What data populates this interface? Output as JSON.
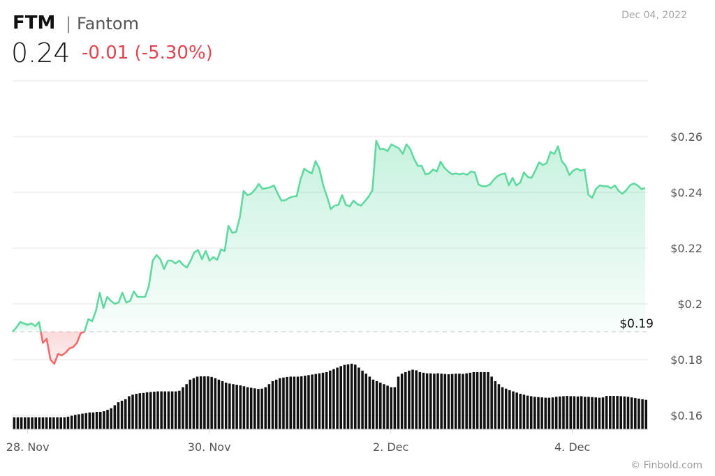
{
  "header": {
    "symbol": "FTM",
    "separator": "|",
    "name": "Fantom",
    "price": "0.24",
    "change": "-0.01 (-5.30%)",
    "date": "Dec 04, 2022",
    "credit": "© Finbold.com"
  },
  "colors": {
    "up_line": "#5fd9a0",
    "down_line": "#f26a6a",
    "change_text": "#e0454f",
    "volume": "#111111",
    "grid": "#e4e4e4"
  },
  "chart_data": {
    "type": "area",
    "title": "",
    "xlabel": "",
    "ylabel": "",
    "ylim": [
      0.155,
      0.28
    ],
    "yticks": [
      0.16,
      0.18,
      0.2,
      0.22,
      0.24,
      0.26
    ],
    "ytick_labels": [
      "$0.16",
      "$0.18",
      "$0.2",
      "$0.22",
      "$0.24",
      "$0.26"
    ],
    "xlim": [
      0,
      42
    ],
    "xticks": [
      1,
      13,
      25,
      37
    ],
    "xtick_labels": [
      "28. Nov",
      "30. Nov",
      "2. Dec",
      "4. Dec"
    ],
    "baseline": 0.19,
    "baseline_label": "$0.19",
    "grid": true,
    "legend": "none",
    "series": [
      {
        "values": [
          0.19,
          0.1915,
          0.1935,
          0.193,
          0.1925,
          0.193,
          0.192,
          0.1935,
          0.186,
          0.1875,
          0.18,
          0.1785,
          0.182,
          0.1815,
          0.1825,
          0.184,
          0.1845,
          0.186,
          0.1895,
          0.19,
          0.1945,
          0.1938,
          0.1975,
          0.204,
          0.1985,
          0.2025,
          0.201,
          0.2,
          0.2005,
          0.204,
          0.2005,
          0.201,
          0.2045,
          0.2025,
          0.2025,
          0.2025,
          0.2065,
          0.2155,
          0.2175,
          0.216,
          0.2125,
          0.2155,
          0.2155,
          0.2145,
          0.2155,
          0.214,
          0.213,
          0.2155,
          0.2185,
          0.2193,
          0.216,
          0.219,
          0.2155,
          0.2168,
          0.2158,
          0.2195,
          0.219,
          0.228,
          0.2255,
          0.2258,
          0.231,
          0.2405,
          0.239,
          0.2395,
          0.241,
          0.243,
          0.2412,
          0.2415,
          0.2418,
          0.2425,
          0.2395,
          0.237,
          0.2372,
          0.238,
          0.2385,
          0.2386,
          0.2445,
          0.2485,
          0.2475,
          0.2468,
          0.2512,
          0.2485,
          0.2425,
          0.2385,
          0.234,
          0.2352,
          0.2355,
          0.239,
          0.2355,
          0.235,
          0.237,
          0.2358,
          0.2352,
          0.2368,
          0.2385,
          0.2408,
          0.2585,
          0.2555,
          0.2556,
          0.2548,
          0.2572,
          0.2565,
          0.2558,
          0.2538,
          0.2572,
          0.2555,
          0.252,
          0.2495,
          0.2495,
          0.2465,
          0.2468,
          0.2482,
          0.2475,
          0.251,
          0.2488,
          0.2475,
          0.2465,
          0.2468,
          0.2465,
          0.2468,
          0.2463,
          0.2475,
          0.2472,
          0.2428,
          0.2422,
          0.2422,
          0.2428,
          0.2445,
          0.2458,
          0.2465,
          0.2468,
          0.2425,
          0.2452,
          0.2425,
          0.2435,
          0.2472,
          0.2455,
          0.2452,
          0.2478,
          0.2508,
          0.2498,
          0.2505,
          0.2545,
          0.2538,
          0.2565,
          0.2512,
          0.2495,
          0.2462,
          0.2478,
          0.2485,
          0.2478,
          0.2482,
          0.2392,
          0.238,
          0.2412,
          0.2425,
          0.2422,
          0.2422,
          0.2415,
          0.2425,
          0.2405,
          0.2395,
          0.2408,
          0.2425,
          0.2432,
          0.2425,
          0.2412,
          0.2415
        ]
      }
    ],
    "volume": [
      0.04,
      0.04,
      0.04,
      0.04,
      0.04,
      0.04,
      0.04,
      0.04,
      0.04,
      0.04,
      0.04,
      0.04,
      0.04,
      0.04,
      0.04,
      0.042,
      0.045,
      0.048,
      0.05,
      0.052,
      0.054,
      0.056,
      0.056,
      0.058,
      0.058,
      0.06,
      0.065,
      0.07,
      0.08,
      0.09,
      0.095,
      0.1,
      0.11,
      0.115,
      0.118,
      0.12,
      0.121,
      0.123,
      0.124,
      0.125,
      0.126,
      0.126,
      0.126,
      0.126,
      0.126,
      0.126,
      0.128,
      0.14,
      0.15,
      0.165,
      0.17,
      0.175,
      0.176,
      0.176,
      0.176,
      0.174,
      0.17,
      0.165,
      0.16,
      0.155,
      0.152,
      0.15,
      0.148,
      0.146,
      0.143,
      0.14,
      0.138,
      0.136,
      0.134,
      0.135,
      0.14,
      0.15,
      0.16,
      0.165,
      0.17,
      0.172,
      0.174,
      0.175,
      0.175,
      0.175,
      0.176,
      0.178,
      0.18,
      0.182,
      0.184,
      0.186,
      0.188,
      0.19,
      0.195,
      0.2,
      0.205,
      0.21,
      0.214,
      0.216,
      0.218,
      0.215,
      0.205,
      0.195,
      0.185,
      0.175,
      0.165,
      0.16,
      0.155,
      0.15,
      0.145,
      0.14,
      0.14,
      0.175,
      0.185,
      0.19,
      0.195,
      0.198,
      0.196,
      0.19,
      0.188,
      0.186,
      0.186,
      0.185,
      0.186,
      0.185,
      0.184,
      0.183,
      0.184,
      0.185,
      0.185,
      0.184,
      0.186,
      0.188,
      0.19,
      0.19,
      0.19,
      0.19,
      0.19,
      0.175,
      0.16,
      0.15,
      0.14,
      0.135,
      0.13,
      0.126,
      0.122,
      0.118,
      0.115,
      0.112,
      0.11,
      0.108,
      0.107,
      0.106,
      0.105,
      0.105,
      0.106,
      0.108,
      0.109,
      0.11,
      0.111,
      0.11,
      0.11,
      0.109,
      0.11,
      0.108,
      0.108,
      0.107,
      0.106,
      0.105,
      0.106,
      0.111,
      0.111,
      0.111,
      0.111,
      0.11,
      0.109,
      0.108,
      0.106,
      0.104,
      0.102,
      0.1,
      0.098
    ]
  }
}
